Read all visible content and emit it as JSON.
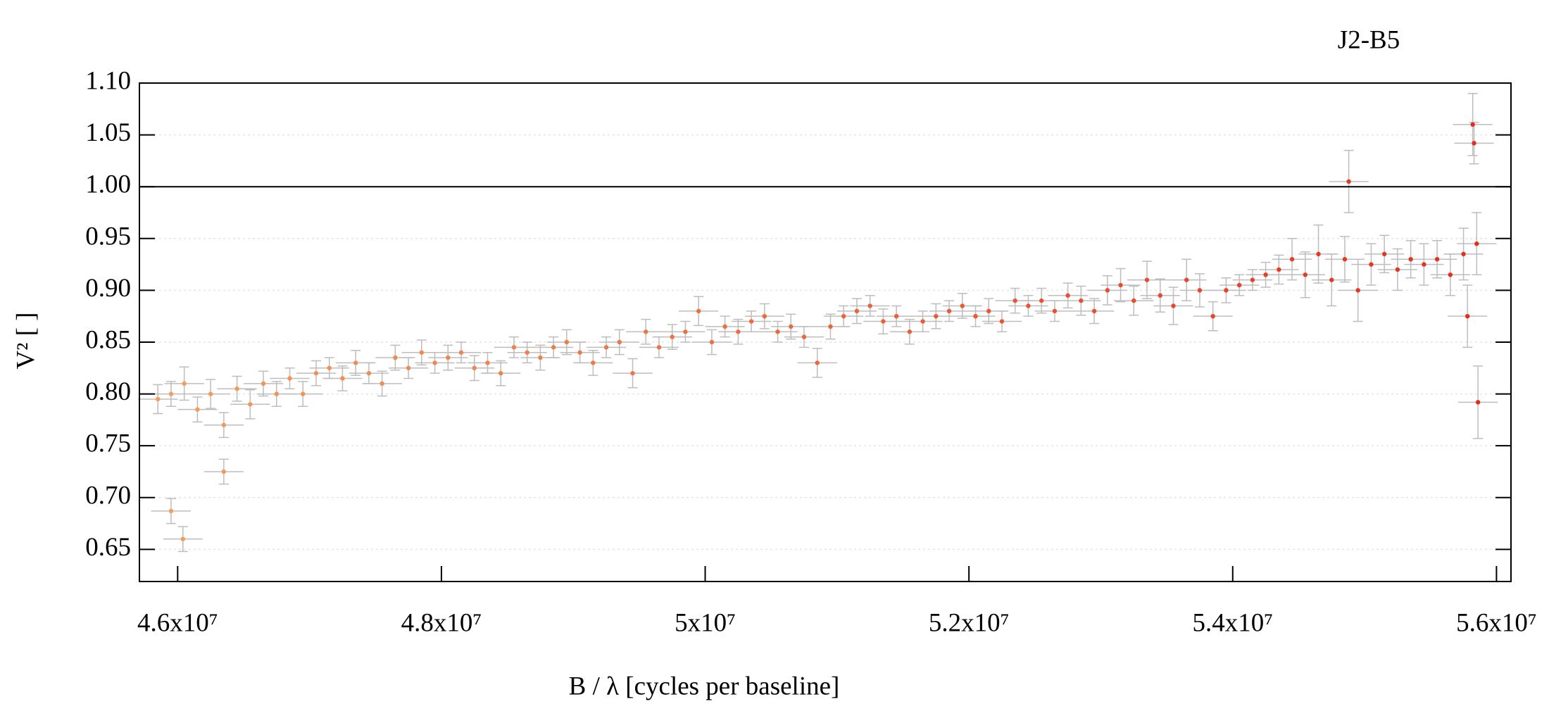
{
  "chart_data": {
    "type": "scatter",
    "title": "J2-B5",
    "xlabel": "B / λ [cycles per baseline]",
    "ylabel": "V² [ ]",
    "xlim": [
      45710000,
      56110000
    ],
    "ylim": [
      0.619,
      1.1
    ],
    "xticks": [
      {
        "value": 46000000,
        "label": "4.6x10⁷"
      },
      {
        "value": 48000000,
        "label": "4.8x10⁷"
      },
      {
        "value": 50000000,
        "label": "5x10⁷"
      },
      {
        "value": 52000000,
        "label": "5.2x10⁷"
      },
      {
        "value": 54000000,
        "label": "5.4x10⁷"
      },
      {
        "value": 56000000,
        "label": "5.6x10⁷"
      }
    ],
    "yticks": [
      0.65,
      {
        "value": 0.7,
        "label": "0.70"
      },
      0.75,
      {
        "value": 0.8,
        "label": "0.80"
      },
      0.85,
      {
        "value": 0.9,
        "label": "0.90"
      },
      0.95,
      {
        "value": 1,
        "label": "1.00"
      },
      1.05,
      {
        "value": 1.1,
        "label": "1.10"
      }
    ],
    "grid": true,
    "reference_line": 1,
    "color_range": [
      "#f5a05c",
      "#e42a1a"
    ],
    "error_color": "#bdbdbd",
    "xerr": 150000,
    "x": [
      45850000,
      45950000,
      46050000,
      46150000,
      46250000,
      46350000,
      46450000,
      46550000,
      46650000,
      46750000,
      46850000,
      46950000,
      47050000,
      47150000,
      47250000,
      47350000,
      47450000,
      47550000,
      47650000,
      47750000,
      47850000,
      47950000,
      48050000,
      48150000,
      48250000,
      48350000,
      48450000,
      48550000,
      48650000,
      48750000,
      48850000,
      48950000,
      49050000,
      49150000,
      49250000,
      49350000,
      49450000,
      49550000,
      49650000,
      49750000,
      49850000,
      49950000,
      50050000,
      50150000,
      50250000,
      50350000,
      50450000,
      50550000,
      50650000,
      50750000,
      50850000,
      50950000,
      51050000,
      51150000,
      51250000,
      51350000,
      51450000,
      51550000,
      51650000,
      51750000,
      51850000,
      51950000,
      52050000,
      52150000,
      52250000,
      52350000,
      52450000,
      52550000,
      52650000,
      52750000,
      52850000,
      52950000,
      53050000,
      53150000,
      53250000,
      53350000,
      53450000,
      53550000,
      53650000,
      53750000,
      53850000,
      53950000,
      54050000,
      54150000,
      54250000,
      54350000,
      54450000,
      54550000,
      54650000,
      54750000,
      54850000,
      54950000,
      55050000,
      55150000,
      55250000,
      55350000,
      55450000,
      55550000,
      55650000,
      55750000,
      55850000,
      45950000,
      46040000,
      46350000,
      54880000,
      55820000,
      55830000,
      55860000,
      55780000
    ],
    "values": [
      0.795,
      0.8,
      0.81,
      0.785,
      0.8,
      0.77,
      0.805,
      0.79,
      0.81,
      0.8,
      0.815,
      0.8,
      0.82,
      0.825,
      0.815,
      0.83,
      0.82,
      0.81,
      0.835,
      0.825,
      0.84,
      0.83,
      0.835,
      0.84,
      0.825,
      0.83,
      0.82,
      0.845,
      0.84,
      0.835,
      0.845,
      0.85,
      0.84,
      0.83,
      0.845,
      0.85,
      0.82,
      0.86,
      0.845,
      0.855,
      0.86,
      0.88,
      0.85,
      0.865,
      0.86,
      0.87,
      0.875,
      0.86,
      0.865,
      0.855,
      0.83,
      0.865,
      0.875,
      0.88,
      0.885,
      0.87,
      0.875,
      0.86,
      0.87,
      0.875,
      0.88,
      0.885,
      0.875,
      0.88,
      0.87,
      0.89,
      0.885,
      0.89,
      0.88,
      0.895,
      0.89,
      0.88,
      0.9,
      0.905,
      0.89,
      0.91,
      0.895,
      0.885,
      0.91,
      0.9,
      0.875,
      0.9,
      0.905,
      0.91,
      0.915,
      0.92,
      0.93,
      0.915,
      0.935,
      0.91,
      0.93,
      0.9,
      0.925,
      0.935,
      0.92,
      0.93,
      0.925,
      0.93,
      0.915,
      0.935,
      0.945,
      0.687,
      0.66,
      0.725,
      1.005,
      1.06,
      1.042,
      0.792,
      0.875
    ],
    "yerr": [
      0.014,
      0.012,
      0.016,
      0.012,
      0.014,
      0.012,
      0.012,
      0.014,
      0.012,
      0.012,
      0.01,
      0.012,
      0.012,
      0.01,
      0.012,
      0.012,
      0.01,
      0.012,
      0.012,
      0.01,
      0.012,
      0.01,
      0.012,
      0.01,
      0.012,
      0.01,
      0.012,
      0.01,
      0.01,
      0.012,
      0.01,
      0.012,
      0.01,
      0.012,
      0.01,
      0.012,
      0.014,
      0.012,
      0.01,
      0.012,
      0.01,
      0.014,
      0.012,
      0.01,
      0.012,
      0.01,
      0.012,
      0.01,
      0.012,
      0.01,
      0.014,
      0.012,
      0.01,
      0.012,
      0.01,
      0.012,
      0.01,
      0.012,
      0.01,
      0.012,
      0.01,
      0.012,
      0.01,
      0.012,
      0.01,
      0.012,
      0.01,
      0.012,
      0.01,
      0.012,
      0.014,
      0.012,
      0.014,
      0.016,
      0.014,
      0.018,
      0.016,
      0.018,
      0.02,
      0.016,
      0.014,
      0.012,
      0.01,
      0.01,
      0.012,
      0.014,
      0.02,
      0.022,
      0.028,
      0.025,
      0.022,
      0.03,
      0.02,
      0.018,
      0.02,
      0.018,
      0.02,
      0.018,
      0.02,
      0.025,
      0.03,
      0.012,
      0.012,
      0.012,
      0.03,
      0.03,
      0.02,
      0.035,
      0.03
    ]
  }
}
